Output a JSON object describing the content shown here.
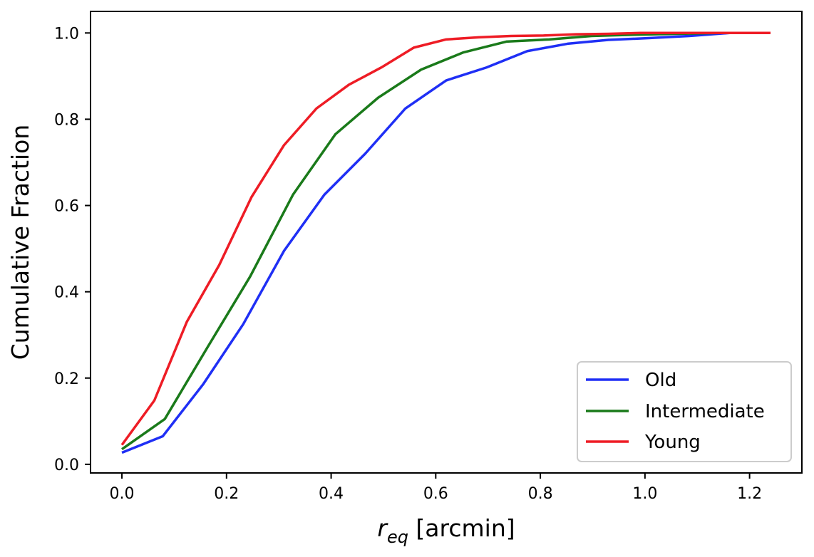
{
  "chart_data": {
    "type": "line",
    "title": "",
    "xlabel_symbol": "r",
    "xlabel_subscript": "eq",
    "xlabel_unit": " [arcmin]",
    "ylabel": "Cumulative Fraction",
    "xlim": [
      -0.06,
      1.3
    ],
    "ylim": [
      -0.02,
      1.05
    ],
    "xticks": [
      0.0,
      0.2,
      0.4,
      0.6,
      0.8,
      1.0,
      1.2
    ],
    "xtick_labels": [
      "0.0",
      "0.2",
      "0.4",
      "0.6",
      "0.8",
      "1.0",
      "1.2"
    ],
    "yticks": [
      0.0,
      0.2,
      0.4,
      0.6,
      0.8,
      1.0
    ],
    "ytick_labels": [
      "0.0",
      "0.2",
      "0.4",
      "0.6",
      "0.8",
      "1.0"
    ],
    "grid": false,
    "legend_position": "lower-right",
    "series": [
      {
        "name": "Old",
        "color": "#1f2ff5",
        "x": [
          0.0,
          0.078,
          0.155,
          0.232,
          0.31,
          0.387,
          0.465,
          0.542,
          0.62,
          0.697,
          0.775,
          0.852,
          0.93,
          1.007,
          1.085,
          1.162,
          1.24
        ],
        "y": [
          0.027,
          0.065,
          0.185,
          0.325,
          0.495,
          0.625,
          0.72,
          0.825,
          0.89,
          0.92,
          0.958,
          0.975,
          0.984,
          0.988,
          0.993,
          1.0,
          1.0
        ]
      },
      {
        "name": "Intermediate",
        "color": "#1a7a1a",
        "x": [
          0.0,
          0.082,
          0.163,
          0.245,
          0.327,
          0.408,
          0.49,
          0.572,
          0.653,
          0.735,
          0.817,
          0.898,
          0.98,
          1.062,
          1.143,
          1.24
        ],
        "y": [
          0.035,
          0.105,
          0.27,
          0.435,
          0.625,
          0.765,
          0.85,
          0.915,
          0.955,
          0.98,
          0.985,
          0.993,
          0.996,
          0.998,
          1.0,
          1.0
        ]
      },
      {
        "name": "Young",
        "color": "#ee1c25",
        "x": [
          0.0,
          0.062,
          0.124,
          0.186,
          0.248,
          0.31,
          0.372,
          0.434,
          0.496,
          0.558,
          0.62,
          0.682,
          0.744,
          0.806,
          0.868,
          0.93,
          0.992,
          1.054,
          1.116,
          1.178,
          1.24
        ],
        "y": [
          0.045,
          0.148,
          0.33,
          0.462,
          0.62,
          0.74,
          0.825,
          0.88,
          0.92,
          0.966,
          0.985,
          0.99,
          0.993,
          0.994,
          0.997,
          0.998,
          1.0,
          1.0,
          1.0,
          1.0,
          1.0
        ]
      }
    ]
  }
}
